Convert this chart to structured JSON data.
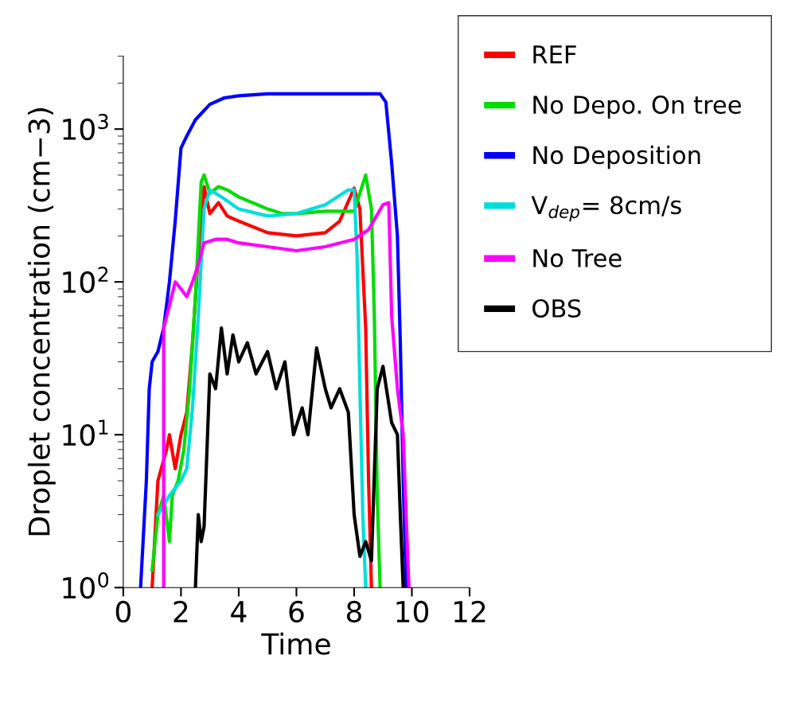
{
  "chart_data": {
    "type": "line",
    "xlabel": "Time",
    "ylabel": "Droplet concentration (cm−3)",
    "log": "y",
    "xlim": [
      0,
      12
    ],
    "xticks": [
      0,
      2,
      4,
      6,
      8,
      10,
      12
    ],
    "ylim": [
      1,
      3000
    ],
    "yticks": [
      {
        "value": 1,
        "label": "10$^{0}$"
      },
      {
        "value": 10,
        "label": "10$^{1}$"
      },
      {
        "value": 100,
        "label": "10$^{2}$"
      },
      {
        "value": 1000,
        "label": "10$^{3}$"
      }
    ],
    "grid": false,
    "legend": "top right",
    "marker": "none",
    "line_style": "solid",
    "series": [
      {
        "name": "REF",
        "color": "#ff0000",
        "x": [
          1.0,
          1.2,
          1.5,
          1.6,
          1.8,
          2.0,
          2.2,
          2.4,
          2.6,
          2.8,
          3.0,
          3.3,
          3.6,
          4,
          5,
          6,
          7,
          7.5,
          8,
          8.2,
          8.4,
          8.5,
          8.6
        ],
        "values": [
          1,
          5,
          8,
          10,
          6,
          10,
          14,
          40,
          150,
          420,
          280,
          330,
          270,
          250,
          210,
          200,
          210,
          250,
          410,
          300,
          50,
          5,
          1
        ]
      },
      {
        "name": "No Depo. On tree",
        "color": "#00dd00",
        "x": [
          1.0,
          1.2,
          1.4,
          1.6,
          1.7,
          1.9,
          2.1,
          2.3,
          2.5,
          2.7,
          2.8,
          3.0,
          3.3,
          3.6,
          4,
          5,
          5.5,
          6,
          7,
          8,
          8.4,
          8.6,
          8.7,
          8.8,
          8.9
        ],
        "values": [
          1.3,
          3,
          4,
          2,
          4,
          5,
          8,
          20,
          80,
          450,
          500,
          380,
          420,
          400,
          360,
          300,
          280,
          280,
          290,
          290,
          500,
          300,
          60,
          4,
          1
        ]
      },
      {
        "name": "No Deposition",
        "color": "#0000ff",
        "x": [
          0.6,
          0.8,
          0.9,
          1.0,
          1.2,
          1.4,
          1.6,
          1.8,
          2.0,
          2.2,
          2.5,
          3.0,
          3.5,
          4,
          5,
          6,
          7,
          8,
          8.9,
          9.1,
          9.3,
          9.5,
          9.6,
          9.7,
          9.8
        ],
        "values": [
          1,
          5,
          20,
          30,
          35,
          50,
          100,
          250,
          750,
          900,
          1150,
          1450,
          1600,
          1650,
          1700,
          1700,
          1700,
          1700,
          1700,
          1500,
          600,
          200,
          40,
          5,
          1
        ]
      },
      {
        "name": "V$_{dep}$= 8cm/s",
        "color": "#00dddd",
        "x": [
          1.2,
          1.6,
          2.0,
          2.2,
          2.4,
          2.6,
          2.8,
          3.0,
          3.5,
          4,
          5,
          6,
          7,
          7.8,
          8.0,
          8.1,
          8.2,
          8.3,
          8.4
        ],
        "values": [
          3,
          4,
          5,
          6,
          15,
          60,
          300,
          400,
          350,
          300,
          270,
          280,
          320,
          400,
          400,
          150,
          20,
          3,
          1
        ]
      },
      {
        "name": "No Tree",
        "color": "#ff00ff",
        "x": [
          1.4,
          1.4,
          1.6,
          1.8,
          2.0,
          2.2,
          2.4,
          2.6,
          2.8,
          3.2,
          3.6,
          4,
          5,
          6,
          7,
          8,
          8.5,
          9.0,
          9.2,
          9.3,
          9.5,
          9.7,
          9.8,
          9.9
        ],
        "values": [
          1,
          50,
          70,
          100,
          90,
          80,
          100,
          130,
          180,
          190,
          190,
          180,
          170,
          160,
          170,
          190,
          220,
          320,
          330,
          60,
          20,
          10,
          3,
          1
        ]
      },
      {
        "name": "OBS",
        "color": "#000000",
        "x": [
          2.5,
          2.6,
          2.7,
          2.8,
          3.0,
          3.2,
          3.4,
          3.6,
          3.8,
          4.0,
          4.3,
          4.6,
          5,
          5.3,
          5.6,
          5.9,
          6.2,
          6.4,
          6.7,
          7.0,
          7.2,
          7.5,
          7.8,
          8.0,
          8.2,
          8.4,
          8.6,
          8.8,
          9.0,
          9.3,
          9.5,
          9.6,
          9.7
        ],
        "values": [
          1,
          3,
          2,
          2.5,
          25,
          20,
          50,
          25,
          45,
          30,
          40,
          25,
          35,
          20,
          30,
          10,
          15,
          10,
          37,
          20,
          15,
          20,
          14,
          3,
          1.6,
          2,
          1.5,
          20,
          28,
          12,
          10,
          3,
          1
        ]
      }
    ]
  }
}
